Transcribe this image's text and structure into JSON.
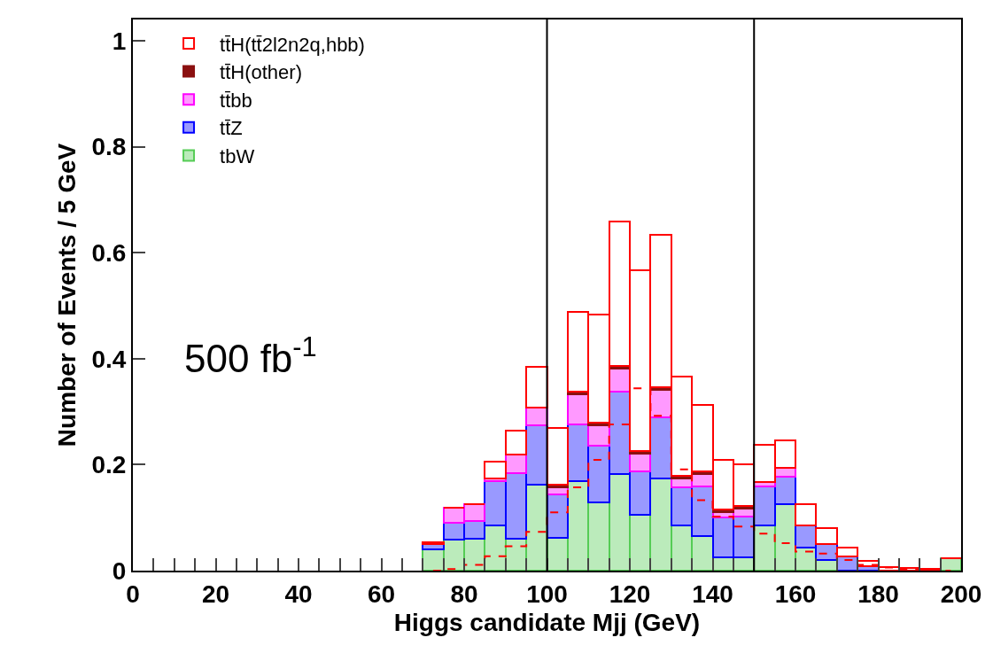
{
  "chart_data": {
    "type": "bar",
    "xlabel": "Higgs candidate Mjj (GeV)",
    "ylabel": "Number of Events / 5 GeV",
    "annotations": [
      "500 fb$^{-1}$"
    ],
    "x": [
      72.5,
      77.5,
      82.5,
      87.5,
      92.5,
      97.5,
      102.5,
      107.5,
      112.5,
      117.5,
      122.5,
      127.5,
      132.5,
      137.5,
      142.5,
      147.5,
      152.5,
      157.5,
      162.5,
      167.5,
      172.5,
      177.5,
      182.5,
      187.5,
      192.5,
      197.5
    ],
    "stacked": true,
    "series": [
      {
        "name": "tbW",
        "color": "#55cc55",
        "values": [
          0.04,
          0.058,
          0.06,
          0.086,
          0.06,
          0.163,
          0.062,
          0.169,
          0.129,
          0.182,
          0.105,
          0.174,
          0.086,
          0.065,
          0.025,
          0.025,
          0.086,
          0.126,
          0.043,
          0.02,
          0,
          0,
          0,
          0,
          0,
          0.023
        ]
      },
      {
        "name": "tt̄Z",
        "color": "#0000ff",
        "values": [
          0.01,
          0.032,
          0.033,
          0.083,
          0.124,
          0.111,
          0.082,
          0.107,
          0.107,
          0.156,
          0.082,
          0.116,
          0.071,
          0.094,
          0.076,
          0.077,
          0.073,
          0.052,
          0.043,
          0.03,
          0.027,
          0.008,
          null,
          0,
          0,
          0
        ]
      },
      {
        "name": "tt̄bb",
        "color": "#ff00ff",
        "values": [
          0,
          0.028,
          0.033,
          0.005,
          0.035,
          0.034,
          0.013,
          0.056,
          0.038,
          0.044,
          0.034,
          0.051,
          0.017,
          0.023,
          0.009,
          0.015,
          0.009,
          0.016,
          0,
          0,
          0,
          null,
          0,
          0,
          0,
          0
        ]
      },
      {
        "name": "tt̄H(other)",
        "color": "#8b1010",
        "values": [
          0,
          0,
          0,
          0,
          0,
          0,
          0.005,
          0.005,
          0.005,
          0.005,
          0.005,
          0.005,
          0.005,
          0.005,
          0.005,
          0.005,
          0,
          0,
          0,
          0,
          0,
          0,
          0,
          0,
          0,
          0
        ]
      },
      {
        "name": "tt̄H(tt̄2l2n2q,hbb)",
        "color": "#ff0000",
        "values": [
          0.003,
          0,
          0,
          0.032,
          0.045,
          0.076,
          0.108,
          0.152,
          0.204,
          0.271,
          0.34,
          0.288,
          0.188,
          0.126,
          0.094,
          0.078,
          0.069,
          0.052,
          0.04,
          0.03,
          0.016,
          0.01,
          0.006,
          0.005,
          0.003,
          0
        ]
      },
      {
        "type": "step",
        "line_style": "dashed",
        "color": "#ff0000",
        "x": [
          72.5,
          77.5,
          82.5,
          87.5,
          92.5,
          97.5,
          102.5,
          107.5,
          112.5,
          117.5,
          122.5,
          127.5,
          132.5,
          137.5,
          142.5,
          147.5,
          152.5,
          157.5,
          162.5,
          167.5,
          172.5,
          177.5,
          182.5,
          187.5,
          192.5,
          197.5
        ],
        "values": [
          0,
          0.003,
          0.011,
          0.027,
          0.046,
          0.073,
          0.11,
          0.157,
          0.209,
          0.276,
          0.344,
          0.292,
          0.191,
          0.133,
          0.102,
          0.083,
          0.07,
          0.052,
          0.036,
          0.032,
          0.02,
          0.011,
          0.006,
          0.003,
          0,
          0
        ]
      }
    ],
    "ref_lines": [
      {
        "axis": "x",
        "value": 100,
        "color": "#000000"
      },
      {
        "axis": "x",
        "value": 150,
        "color": "#000000"
      }
    ],
    "xlim": [
      0,
      200
    ],
    "xticks": [
      0,
      {
        "value": 5,
        "label": null
      },
      {
        "value": 10,
        "label": null
      },
      {
        "value": 15,
        "label": null
      },
      20,
      {
        "value": 25,
        "label": null
      },
      {
        "value": 30,
        "label": null
      },
      {
        "value": 35,
        "label": null
      },
      40,
      {
        "value": 45,
        "label": null
      },
      {
        "value": 50,
        "label": null
      },
      {
        "value": 55,
        "label": null
      },
      60,
      {
        "value": 65,
        "label": null
      },
      {
        "value": 70,
        "label": null
      },
      {
        "value": 75,
        "label": null
      },
      80,
      {
        "value": 85,
        "label": null
      },
      {
        "value": 90,
        "label": null
      },
      {
        "value": 95,
        "label": null
      },
      100,
      {
        "value": 105,
        "label": null
      },
      {
        "value": 110,
        "label": null
      },
      {
        "value": 115,
        "label": null
      },
      120,
      {
        "value": 125,
        "label": null
      },
      {
        "value": 130,
        "label": null
      },
      {
        "value": 135,
        "label": null
      },
      140,
      {
        "value": 145,
        "label": null
      },
      {
        "value": 150,
        "label": null
      },
      {
        "value": 155,
        "label": null
      },
      160,
      {
        "value": 165,
        "label": null
      },
      {
        "value": 170,
        "label": null
      },
      {
        "value": 175,
        "label": null
      },
      180,
      {
        "value": 185,
        "label": null
      },
      {
        "value": 190,
        "label": null
      },
      {
        "value": 195,
        "label": null
      },
      200
    ],
    "ylim": [
      0,
      1.04
    ],
    "yticks": [
      0,
      0.2,
      0.4,
      0.6,
      0.8,
      1
    ],
    "grid": false,
    "legend": "top left"
  }
}
